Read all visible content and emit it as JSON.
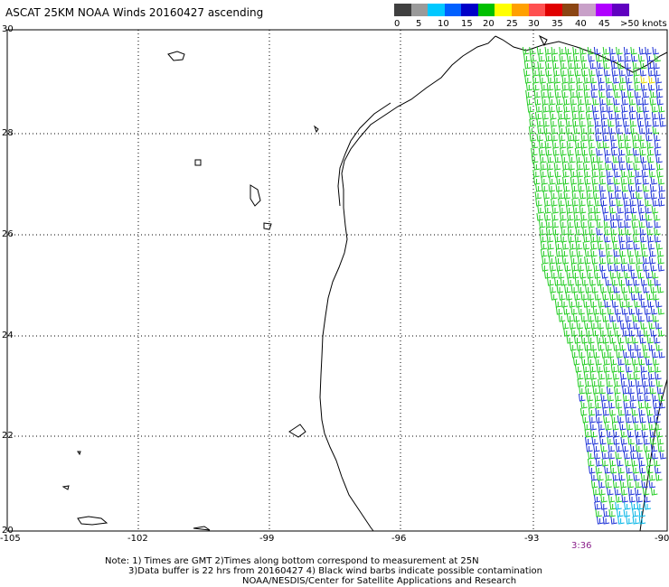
{
  "title": "ASCAT 25KM NOAA Winds 20160427 ascending",
  "legend": {
    "colors": [
      "#404040",
      "#9a9a9a",
      "#00c8ff",
      "#0060ff",
      "#0000c8",
      "#00c000",
      "#ffff00",
      "#ffa000",
      "#ff5050",
      "#e00000",
      "#8b4513",
      "#c8a0c8",
      "#b000ff",
      "#6000c0"
    ],
    "labels": [
      "0",
      "5",
      "10",
      "15",
      "20",
      "25",
      "30",
      "35",
      "40",
      "45",
      ">50 knots"
    ]
  },
  "axes": {
    "lat_labels": [
      "30",
      "28",
      "26",
      "24",
      "22",
      "20"
    ],
    "lon_labels": [
      "-105",
      "-102",
      "-99",
      "-96",
      "-93",
      "-90"
    ]
  },
  "timestamp": "3:36",
  "notes": [
    "Note: 1) Times are GMT 2)Times along bottom correspond to measurement at 25N",
    "3)Data buffer is 22 hrs from 20160427 4) Black wind barbs indicate possible contamination",
    "NOAA/NESDIS/Center for Satellite Applications and Research"
  ],
  "colors": {
    "coastline": "#000000",
    "grid": "#000000",
    "barb_green": "#22cc22",
    "barb_blue": "#1a2fd6",
    "barb_cyan": "#00b4e6",
    "barb_yellow": "#e8d800"
  }
}
